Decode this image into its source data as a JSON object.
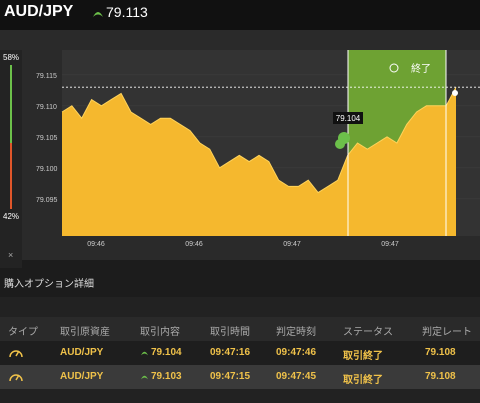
{
  "header": {
    "pair": "AUD/JPY",
    "price": "79.113",
    "price_direction": "up",
    "icon": "arrow-up-icon"
  },
  "sentiment": {
    "high_percent": "58%",
    "low_percent": "42%",
    "up_fraction": 0.58,
    "close_label": "×",
    "up_color": "#6cc04a",
    "down_color": "#e0562a"
  },
  "chart": {
    "end_label": "終了",
    "end_icon": "clock-icon",
    "marker_price": "79.104",
    "current_price_line": "79.113",
    "fill_color": "#f5b82e",
    "expiry_zone_color": "#6ea233"
  },
  "chart_data": {
    "type": "area",
    "title": "",
    "xlabel": "",
    "ylabel": "",
    "y_ticks": [
      "79.115",
      "79.110",
      "79.105",
      "79.100",
      "79.095"
    ],
    "x_ticks": [
      "09:46",
      "09:46",
      "09:47",
      "09:47"
    ],
    "ylim": [
      79.089,
      79.119
    ],
    "series": [
      {
        "values": [
          79.109,
          79.11,
          79.108,
          79.111,
          79.11,
          79.111,
          79.112,
          79.109,
          79.108,
          79.107,
          79.108,
          79.108,
          79.107,
          79.106,
          79.104,
          79.103,
          79.1,
          79.101,
          79.102,
          79.101,
          79.102,
          79.101,
          79.098,
          79.097,
          79.097,
          79.098,
          79.096,
          79.097,
          79.098,
          79.102,
          79.104,
          79.103,
          79.104,
          79.105,
          79.104,
          79.107,
          79.109,
          79.11,
          79.11,
          79.11,
          79.113
        ]
      }
    ]
  },
  "section": {
    "title": "購入オプション詳細"
  },
  "table": {
    "columns": [
      "タイプ",
      "取引原資産",
      "取引内容",
      "取引時間",
      "判定時刻",
      "ステータス",
      "判定レート"
    ],
    "rows": [
      {
        "type_icon": "gauge-icon",
        "asset": "AUD/JPY",
        "content": "79.104",
        "direction": "up",
        "trade_time": "09:47:16",
        "judge_time": "09:47:46",
        "status": "取引終了",
        "rate": "79.108"
      },
      {
        "type_icon": "gauge-icon",
        "asset": "AUD/JPY",
        "content": "79.103",
        "direction": "up",
        "trade_time": "09:47:15",
        "judge_time": "09:47:45",
        "status": "取引終了",
        "rate": "79.108"
      }
    ]
  }
}
